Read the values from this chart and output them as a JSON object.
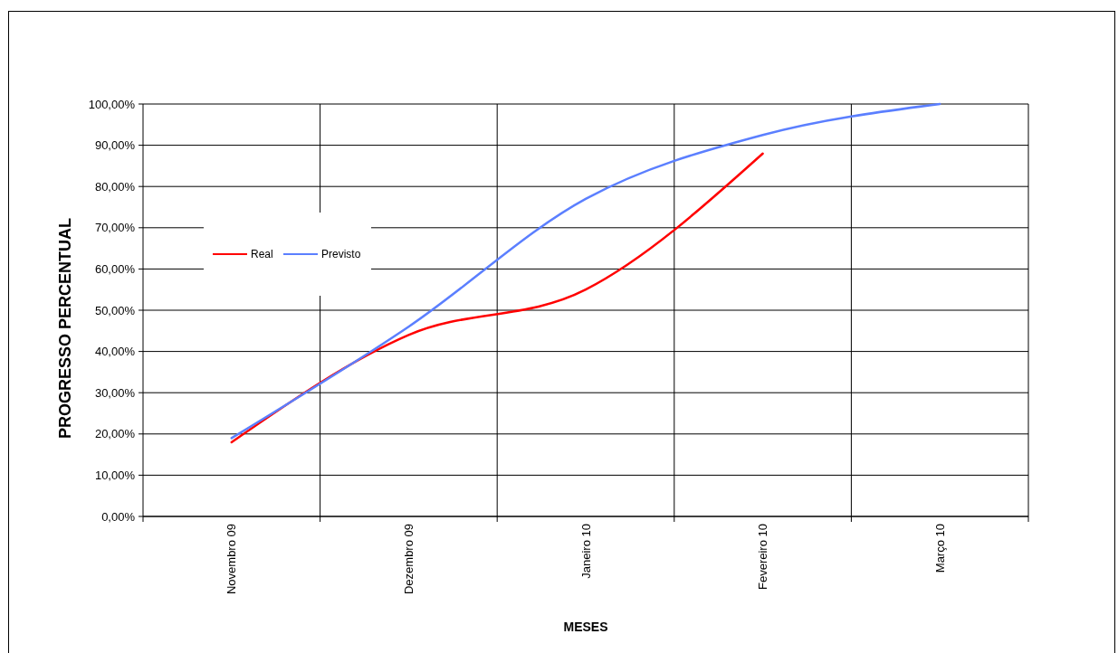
{
  "chart_data": {
    "type": "line",
    "xlabel": "MESES",
    "ylabel": "PROGRESSO PERCENTUAL",
    "categories": [
      "Novembro 09",
      "Dezembro 09",
      "Janeiro 10",
      "Fevereiro 10",
      "Março 10"
    ],
    "series": [
      {
        "name": "Real",
        "color": "#ff0000",
        "values": [
          18,
          44,
          55,
          88,
          null
        ]
      },
      {
        "name": "Previsto",
        "color": "#5b7fff",
        "values": [
          19,
          46,
          77,
          92.5,
          100
        ]
      }
    ],
    "ylim": [
      0,
      100
    ],
    "yticks": [
      {
        "value": 0,
        "label": "0,00%"
      },
      {
        "value": 10,
        "label": "10,00%"
      },
      {
        "value": 20,
        "label": "20,00%"
      },
      {
        "value": 30,
        "label": "30,00%"
      },
      {
        "value": 40,
        "label": "40,00%"
      },
      {
        "value": 50,
        "label": "50,00%"
      },
      {
        "value": 60,
        "label": "60,00%"
      },
      {
        "value": 70,
        "label": "70,00%"
      },
      {
        "value": 80,
        "label": "80,00%"
      },
      {
        "value": 90,
        "label": "90,00%"
      },
      {
        "value": 100,
        "label": "100,00%"
      }
    ],
    "grid": true,
    "legend": "left",
    "marker": "none",
    "line_style": "solid"
  }
}
